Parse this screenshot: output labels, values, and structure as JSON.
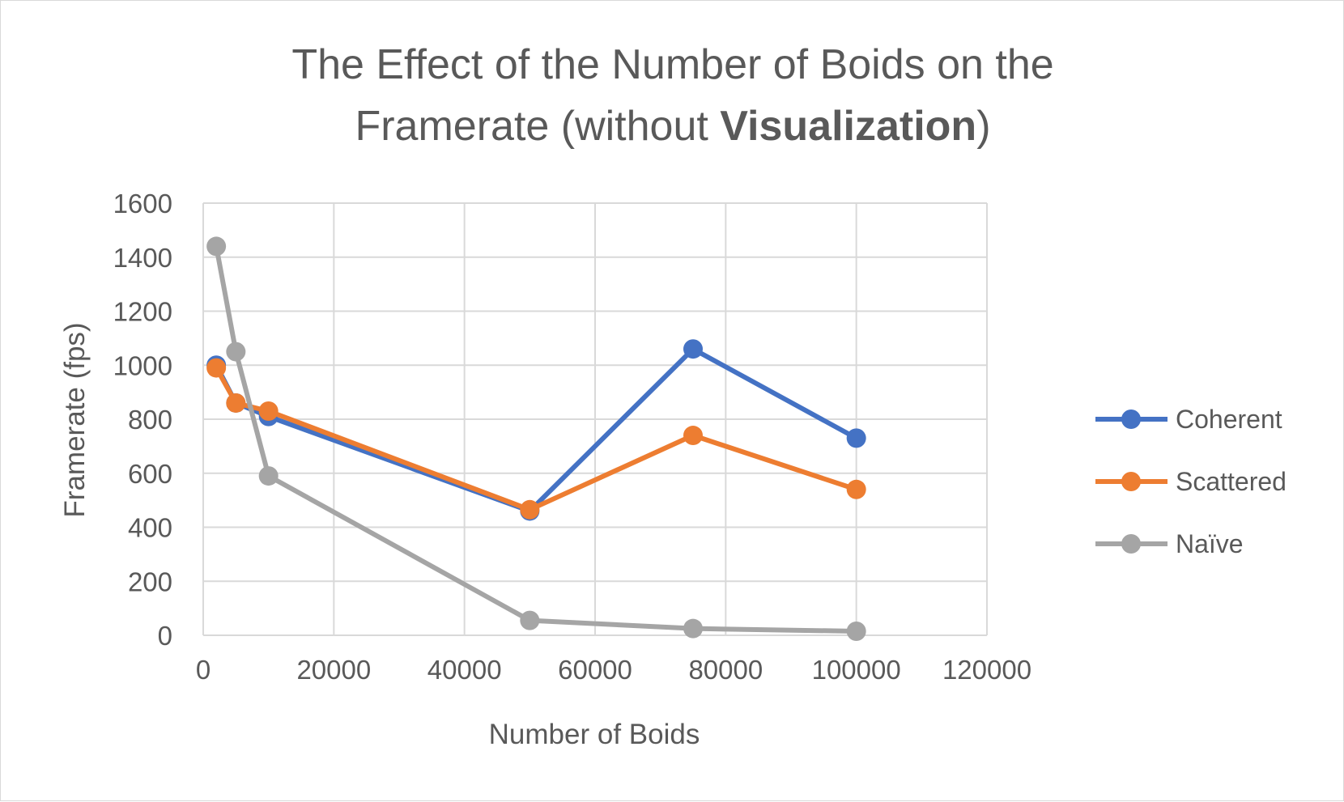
{
  "chart_data": {
    "type": "scatter",
    "title_line1": "The Effect of the Number of Boids on the",
    "title_line2_pre": "Framerate (without ",
    "title_line2_bold": "Visualization",
    "title_line2_post": ")",
    "xlabel": "Number of Boids",
    "ylabel": "Framerate (fps)",
    "xlim": [
      0,
      120000
    ],
    "ylim": [
      0,
      1600
    ],
    "xticks": [
      "0",
      "20000",
      "40000",
      "60000",
      "80000",
      "100000",
      "120000"
    ],
    "yticks": [
      "0",
      "200",
      "400",
      "600",
      "800",
      "1000",
      "1200",
      "1400",
      "1600"
    ],
    "grid": true,
    "legend_position": "right",
    "series": [
      {
        "name": "Coherent",
        "color": "#4472c4",
        "x": [
          2000,
          5000,
          10000,
          50000,
          75000,
          100000
        ],
        "y": [
          1000,
          860,
          810,
          460,
          1060,
          730
        ]
      },
      {
        "name": "Scattered",
        "color": "#ed7d31",
        "x": [
          2000,
          5000,
          10000,
          50000,
          75000,
          100000
        ],
        "y": [
          990,
          860,
          830,
          465,
          740,
          540
        ]
      },
      {
        "name": "Naïve",
        "color": "#a5a5a5",
        "x": [
          2000,
          5000,
          10000,
          50000,
          75000,
          100000
        ],
        "y": [
          1440,
          1050,
          590,
          55,
          25,
          15
        ]
      }
    ]
  }
}
